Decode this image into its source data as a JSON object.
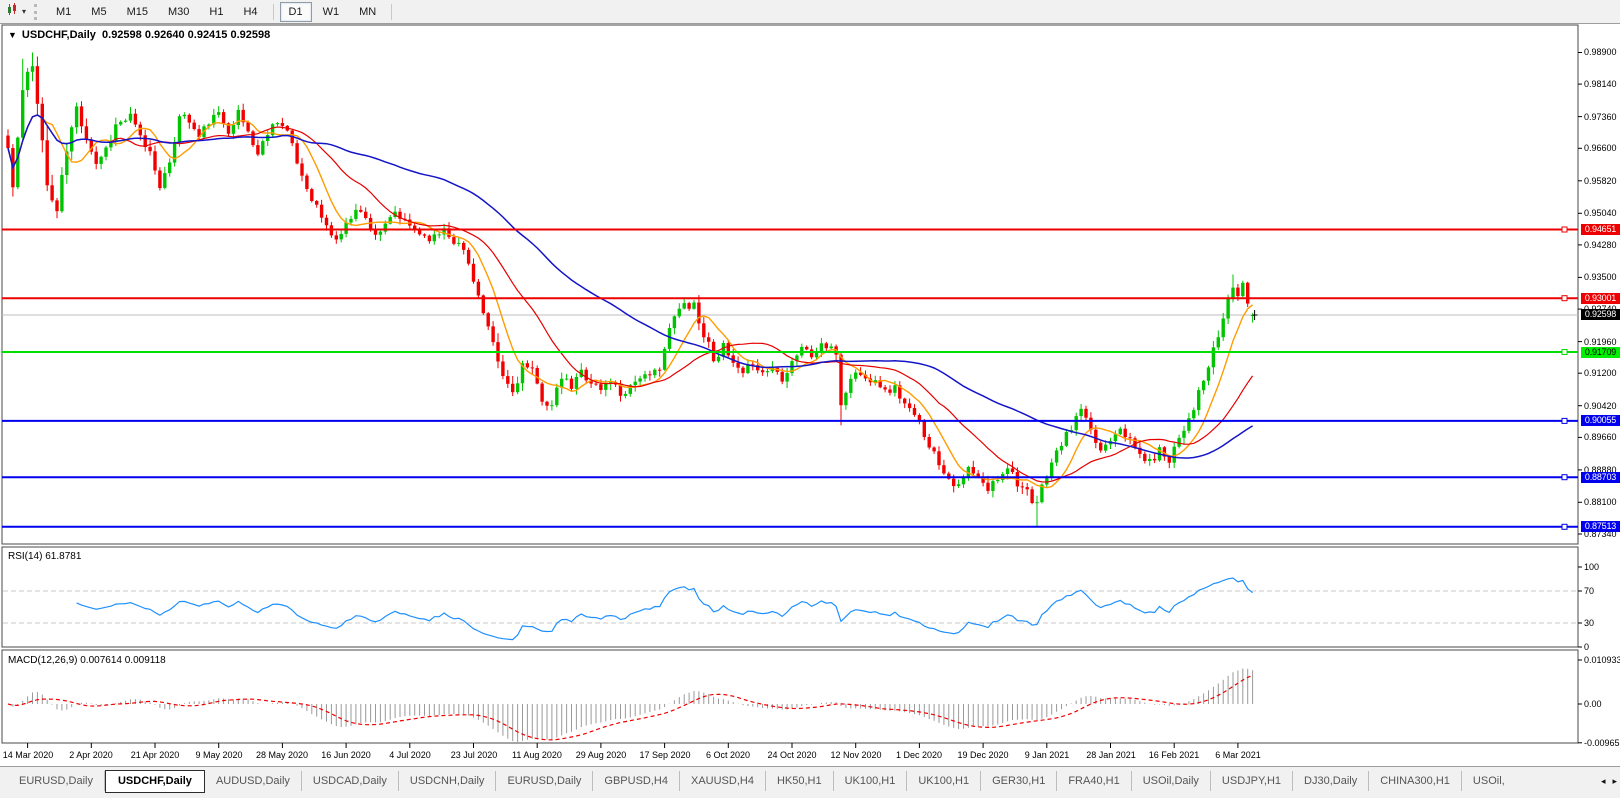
{
  "toolbar": {
    "chart_style_icon": "candlestick-style",
    "timeframes": [
      {
        "label": "M1",
        "active": false
      },
      {
        "label": "M5",
        "active": false
      },
      {
        "label": "M15",
        "active": false
      },
      {
        "label": "M30",
        "active": false
      },
      {
        "label": "H1",
        "active": false
      },
      {
        "label": "H4",
        "active": false
      },
      {
        "label": "D1",
        "active": true
      },
      {
        "label": "W1",
        "active": false
      },
      {
        "label": "MN",
        "active": false
      }
    ]
  },
  "chart": {
    "collapse_arrow": "▼",
    "title_symbol": "USDCHF,Daily",
    "title_quotes": "0.92598 0.92640 0.92415 0.92598",
    "rsi_label": "RSI(14) 61.8781",
    "macd_label": "MACD(12,26,9) 0.007614 0.009118"
  },
  "chart_data": {
    "type": "candlestick",
    "symbol": "USDCHF",
    "timeframe": "Daily",
    "grid": "off",
    "seed": 11,
    "current_ohlc": {
      "open": 0.92598,
      "high": 0.9264,
      "low": 0.92415,
      "close": 0.92598
    },
    "price_axis": {
      "ylim": [
        0.871,
        0.9956
      ],
      "ticks": [
        "0.98900",
        "0.98140",
        "0.97360",
        "0.96600",
        "0.95820",
        "0.95040",
        "0.94280",
        "0.93500",
        "0.92740",
        "0.91960",
        "0.91200",
        "0.90420",
        "0.89660",
        "0.88880",
        "0.88100",
        "0.87340"
      ]
    },
    "levels": [
      {
        "price": 0.94651,
        "label": "0.94651",
        "color": "#ee0000",
        "badge_bg": "#ee0000",
        "text": "#ffffff"
      },
      {
        "price": 0.93001,
        "label": "0.93001",
        "color": "#ee0000",
        "badge_bg": "#ee0000",
        "text": "#ffffff"
      },
      {
        "price": 0.91709,
        "label": "0.91709",
        "color": "#00dd00",
        "badge_bg": "#00ee00",
        "text": "#000000"
      },
      {
        "price": 0.90055,
        "label": "0.90055",
        "color": "#0000ee",
        "badge_bg": "#0000ee",
        "text": "#ffffff"
      },
      {
        "price": 0.88703,
        "label": "0.88703",
        "color": "#0000ee",
        "badge_bg": "#0000ee",
        "text": "#ffffff"
      },
      {
        "price": 0.87513,
        "label": "0.87513",
        "color": "#0000ee",
        "badge_bg": "#0000ee",
        "text": "#ffffff"
      }
    ],
    "bid": {
      "price": 0.92598,
      "label": "0.92598",
      "line_color": "#bebebe",
      "badge_bg": "#000000",
      "text": "#ffffff"
    },
    "x_axis": {
      "labels": [
        "14 Mar 2020",
        "2 Apr 2020",
        "21 Apr 2020",
        "9 May 2020",
        "28 May 2020",
        "16 Jun 2020",
        "4 Jul 2020",
        "23 Jul 2020",
        "11 Aug 2020",
        "29 Aug 2020",
        "17 Sep 2020",
        "6 Oct 2020",
        "24 Oct 2020",
        "12 Nov 2020",
        "1 Dec 2020",
        "19 Dec 2020",
        "9 Jan 2021",
        "28 Jan 2021",
        "16 Feb 2021",
        "6 Mar 2021"
      ],
      "first_label_bar": 4,
      "bars_per_label": 13
    },
    "bars_total": 255,
    "bar_spacing": 4.9,
    "x_start": 8,
    "colors": {
      "bull": "#00c400",
      "bear": "#f20000",
      "frame": "#4a4a4a"
    },
    "close_keyframes": [
      [
        0,
        0.966
      ],
      [
        1,
        0.9565
      ],
      [
        3,
        0.9795
      ],
      [
        5,
        0.9855
      ],
      [
        6,
        0.979
      ],
      [
        8,
        0.9565
      ],
      [
        10,
        0.951
      ],
      [
        12,
        0.9655
      ],
      [
        14,
        0.9755
      ],
      [
        16,
        0.969
      ],
      [
        18,
        0.9625
      ],
      [
        20,
        0.966
      ],
      [
        22,
        0.9715
      ],
      [
        25,
        0.9735
      ],
      [
        27,
        0.9685
      ],
      [
        29,
        0.965
      ],
      [
        31,
        0.9575
      ],
      [
        33,
        0.9615
      ],
      [
        35,
        0.9745
      ],
      [
        37,
        0.9725
      ],
      [
        39,
        0.9685
      ],
      [
        41,
        0.9725
      ],
      [
        43,
        0.974
      ],
      [
        45,
        0.9705
      ],
      [
        47,
        0.9745
      ],
      [
        49,
        0.97
      ],
      [
        51,
        0.9645
      ],
      [
        53,
        0.97
      ],
      [
        55,
        0.973
      ],
      [
        57,
        0.97
      ],
      [
        59,
        0.9625
      ],
      [
        61,
        0.9565
      ],
      [
        63,
        0.952
      ],
      [
        65,
        0.947
      ],
      [
        67,
        0.944
      ],
      [
        69,
        0.9475
      ],
      [
        71,
        0.952
      ],
      [
        73,
        0.949
      ],
      [
        75,
        0.9455
      ],
      [
        77,
        0.947
      ],
      [
        79,
        0.9505
      ],
      [
        81,
        0.948
      ],
      [
        83,
        0.9465
      ],
      [
        85,
        0.945
      ],
      [
        87,
        0.9445
      ],
      [
        89,
        0.947
      ],
      [
        91,
        0.944
      ],
      [
        93,
        0.9415
      ],
      [
        95,
        0.935
      ],
      [
        97,
        0.926
      ],
      [
        99,
        0.918
      ],
      [
        101,
        0.911
      ],
      [
        103,
        0.9075
      ],
      [
        105,
        0.914
      ],
      [
        107,
        0.912
      ],
      [
        109,
        0.906
      ],
      [
        111,
        0.904
      ],
      [
        113,
        0.911
      ],
      [
        115,
        0.9085
      ],
      [
        117,
        0.9125
      ],
      [
        119,
        0.91
      ],
      [
        121,
        0.908
      ],
      [
        123,
        0.9105
      ],
      [
        125,
        0.907
      ],
      [
        127,
        0.909
      ],
      [
        129,
        0.9115
      ],
      [
        131,
        0.9105
      ],
      [
        133,
        0.914
      ],
      [
        135,
        0.922
      ],
      [
        136,
        0.9255
      ],
      [
        138,
        0.9285
      ],
      [
        140,
        0.929
      ],
      [
        141,
        0.924
      ],
      [
        142,
        0.9215
      ],
      [
        144,
        0.916
      ],
      [
        146,
        0.918
      ],
      [
        148,
        0.914
      ],
      [
        150,
        0.911
      ],
      [
        152,
        0.915
      ],
      [
        154,
        0.912
      ],
      [
        156,
        0.9135
      ],
      [
        158,
        0.911
      ],
      [
        160,
        0.915
      ],
      [
        162,
        0.9185
      ],
      [
        164,
        0.916
      ],
      [
        166,
        0.919
      ],
      [
        168,
        0.9175
      ],
      [
        169,
        0.917
      ],
      [
        170,
        0.9045
      ],
      [
        171,
        0.908
      ],
      [
        173,
        0.9125
      ],
      [
        175,
        0.9105
      ],
      [
        177,
        0.911
      ],
      [
        179,
        0.9075
      ],
      [
        181,
        0.9085
      ],
      [
        183,
        0.9045
      ],
      [
        186,
        0.9
      ],
      [
        188,
        0.895
      ],
      [
        190,
        0.8905
      ],
      [
        192,
        0.887
      ],
      [
        194,
        0.8845
      ],
      [
        196,
        0.889
      ],
      [
        198,
        0.8865
      ],
      [
        200,
        0.884
      ],
      [
        202,
        0.887
      ],
      [
        204,
        0.89
      ],
      [
        206,
        0.886
      ],
      [
        208,
        0.883
      ],
      [
        209,
        0.88
      ],
      [
        210,
        0.881
      ],
      [
        212,
        0.888
      ],
      [
        214,
        0.893
      ],
      [
        216,
        0.897
      ],
      [
        218,
        0.901
      ],
      [
        219,
        0.9035
      ],
      [
        221,
        0.8975
      ],
      [
        223,
        0.8935
      ],
      [
        225,
        0.8965
      ],
      [
        227,
        0.8995
      ],
      [
        229,
        0.8955
      ],
      [
        231,
        0.8925
      ],
      [
        233,
        0.8905
      ],
      [
        235,
        0.8935
      ],
      [
        237,
        0.8915
      ],
      [
        238,
        0.8945
      ],
      [
        240,
        0.899
      ],
      [
        242,
        0.904
      ],
      [
        244,
        0.91
      ],
      [
        246,
        0.917
      ],
      [
        248,
        0.925
      ],
      [
        249,
        0.93
      ],
      [
        250,
        0.933
      ],
      [
        251,
        0.9305
      ],
      [
        252,
        0.933
      ],
      [
        253,
        0.929
      ],
      [
        254,
        0.92598
      ]
    ],
    "vol_keyframes": [
      [
        0,
        0.0045
      ],
      [
        8,
        0.0052
      ],
      [
        12,
        0.003
      ],
      [
        18,
        0.0022
      ],
      [
        60,
        0.0018
      ],
      [
        94,
        0.002
      ],
      [
        97,
        0.003
      ],
      [
        104,
        0.0026
      ],
      [
        110,
        0.002
      ],
      [
        135,
        0.0022
      ],
      [
        141,
        0.0024
      ],
      [
        168,
        0.0018
      ],
      [
        170,
        0.003
      ],
      [
        173,
        0.0016
      ],
      [
        208,
        0.0022
      ],
      [
        213,
        0.0016
      ],
      [
        246,
        0.0022
      ],
      [
        254,
        0.0012
      ]
    ],
    "overrides": {
      "3": {
        "h": 0.9875
      },
      "5": {
        "h": 0.989
      },
      "140": {
        "h": 0.9296
      },
      "170": {
        "l": 0.8995
      },
      "210": {
        "l": 0.8752
      },
      "219": {
        "h": 0.9046
      },
      "250": {
        "h": 0.9357
      },
      "254": {
        "o": 0.92598,
        "h": 0.9264,
        "l": 0.92415,
        "c": 0.92598
      }
    },
    "moving_averages": [
      {
        "period": 8,
        "color": "#ff9c00",
        "width": 1.4
      },
      {
        "period": 21,
        "color": "#e60000",
        "width": 1.2
      },
      {
        "period": 55,
        "color": "#1414c8",
        "width": 1.5
      }
    ],
    "rsi": {
      "period": 14,
      "value": "61.8781",
      "color": "#1e90ff",
      "ticks": [
        "100",
        "70",
        "30",
        "0"
      ],
      "level_lines": [
        70,
        30
      ],
      "ylim": [
        0,
        100
      ]
    },
    "macd": {
      "fast": 12,
      "slow": 26,
      "signal": 9,
      "value_main": "0.007614",
      "value_signal": "0.009118",
      "ticks": [
        "0.010933",
        "0.00",
        "-0.009653"
      ],
      "hist_color": "#9a9a9a",
      "signal_color": "#f20000"
    }
  },
  "tabs": {
    "items": [
      {
        "label": "EURUSD,Daily",
        "active": false
      },
      {
        "label": "USDCHF,Daily",
        "active": true
      },
      {
        "label": "AUDUSD,Daily",
        "active": false
      },
      {
        "label": "USDCAD,Daily",
        "active": false
      },
      {
        "label": "USDCNH,Daily",
        "active": false
      },
      {
        "label": "EURUSD,Daily",
        "active": false
      },
      {
        "label": "GBPUSD,H4",
        "active": false
      },
      {
        "label": "XAUUSD,H4",
        "active": false
      },
      {
        "label": "HK50,H1",
        "active": false
      },
      {
        "label": "UK100,H1",
        "active": false
      },
      {
        "label": "UK100,H1",
        "active": false
      },
      {
        "label": "GER30,H1",
        "active": false
      },
      {
        "label": "FRA40,H1",
        "active": false
      },
      {
        "label": "USOil,Daily",
        "active": false
      },
      {
        "label": "USDJPY,H1",
        "active": false
      },
      {
        "label": "DJ30,Daily",
        "active": false
      },
      {
        "label": "CHINA300,H1",
        "active": false
      },
      {
        "label": "USOil,",
        "active": false
      }
    ],
    "scroll_left": "◂",
    "scroll_right": "▸"
  }
}
